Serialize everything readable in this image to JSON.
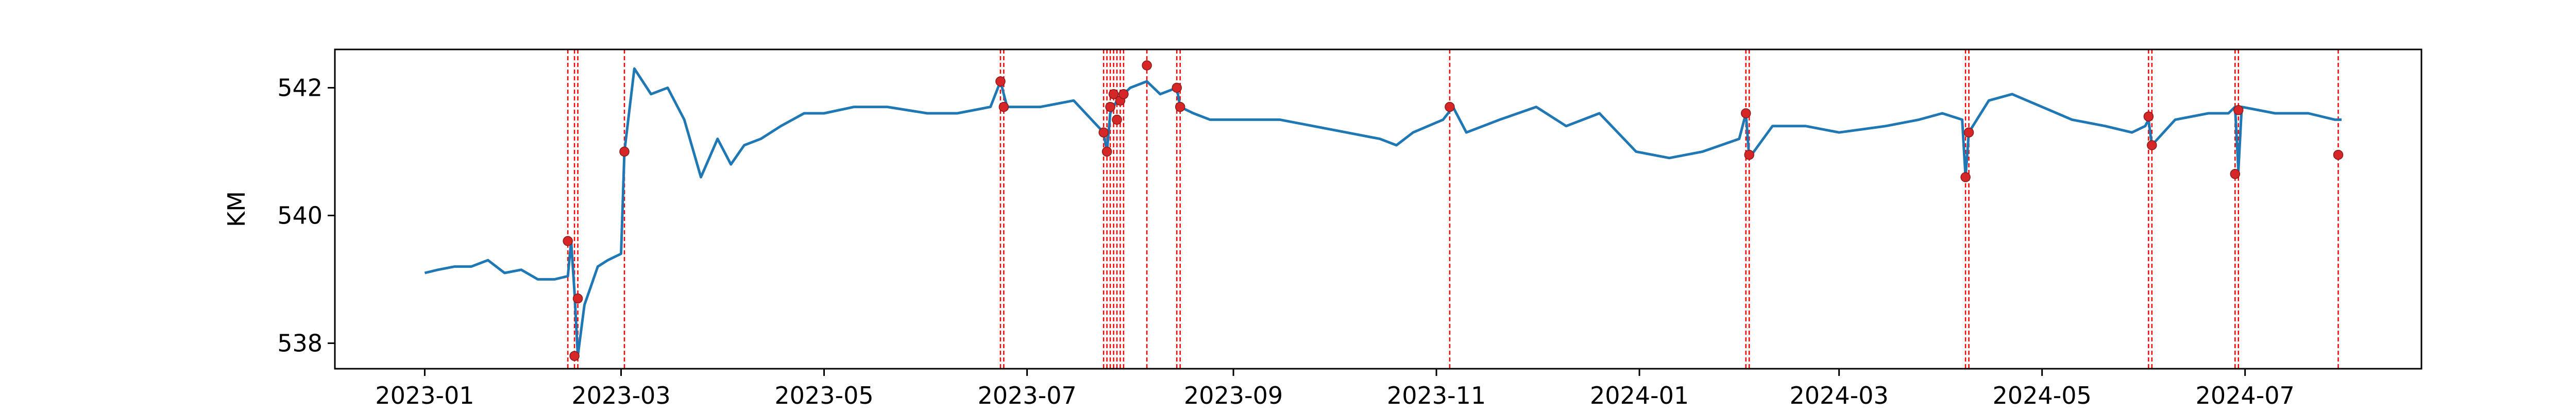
{
  "chart_data": {
    "type": "line",
    "title": "",
    "xlabel": "",
    "ylabel": "KM",
    "xlim": [
      "2022-12-05",
      "2024-08-23"
    ],
    "ylim": [
      537.6,
      542.6
    ],
    "yticks": [
      538,
      540,
      542
    ],
    "ytick_labels": [
      "538",
      "540",
      "542"
    ],
    "xticks": [
      "2023-01-01",
      "2023-03-01",
      "2023-05-01",
      "2023-07-01",
      "2023-09-01",
      "2023-11-01",
      "2024-01-01",
      "2024-03-01",
      "2024-05-01",
      "2024-07-01"
    ],
    "xtick_labels": [
      "2023-01",
      "2023-03",
      "2023-05",
      "2023-07",
      "2023-09",
      "2023-11",
      "2024-01",
      "2024-03",
      "2024-05",
      "2024-07"
    ],
    "grid": false,
    "legend": "none",
    "colors": {
      "series": "#1f77b4",
      "markers": "#d62728",
      "vlines": "#ff0000"
    },
    "series": [
      {
        "x": [
          "2023-01-01",
          "2023-01-05",
          "2023-01-10",
          "2023-01-15",
          "2023-01-20",
          "2023-01-25",
          "2023-01-30",
          "2023-02-04",
          "2023-02-09",
          "2023-02-13",
          "2023-02-14",
          "2023-02-15",
          "2023-02-16",
          "2023-02-18",
          "2023-02-20",
          "2023-02-22",
          "2023-02-25",
          "2023-03-01",
          "2023-03-02",
          "2023-03-05",
          "2023-03-10",
          "2023-03-15",
          "2023-03-20",
          "2023-03-25",
          "2023-03-30",
          "2023-04-03",
          "2023-04-07",
          "2023-04-12",
          "2023-04-18",
          "2023-04-25",
          "2023-05-01",
          "2023-05-10",
          "2023-05-20",
          "2023-06-01",
          "2023-06-10",
          "2023-06-20",
          "2023-06-23",
          "2023-06-25",
          "2023-07-05",
          "2023-07-15",
          "2023-07-24",
          "2023-07-25",
          "2023-07-26",
          "2023-07-28",
          "2023-07-30",
          "2023-08-01",
          "2023-08-06",
          "2023-08-10",
          "2023-08-15",
          "2023-08-16",
          "2023-08-20",
          "2023-08-25",
          "2023-09-05",
          "2023-09-15",
          "2023-09-25",
          "2023-10-05",
          "2023-10-15",
          "2023-10-20",
          "2023-10-25",
          "2023-11-03",
          "2023-11-06",
          "2023-11-10",
          "2023-11-20",
          "2023-12-01",
          "2023-12-10",
          "2023-12-20",
          "2023-12-31",
          "2024-01-10",
          "2024-01-20",
          "2024-01-31",
          "2024-02-02",
          "2024-02-03",
          "2024-02-10",
          "2024-02-20",
          "2024-03-01",
          "2024-03-15",
          "2024-03-25",
          "2024-04-01",
          "2024-04-07",
          "2024-04-08",
          "2024-04-09",
          "2024-04-15",
          "2024-04-22",
          "2024-05-01",
          "2024-05-10",
          "2024-05-20",
          "2024-05-28",
          "2024-06-01",
          "2024-06-02",
          "2024-06-03",
          "2024-06-10",
          "2024-06-20",
          "2024-06-26",
          "2024-06-28",
          "2024-06-29",
          "2024-06-30",
          "2024-07-10",
          "2024-07-20",
          "2024-07-28",
          "2024-07-30"
        ],
        "values": [
          539.1,
          539.15,
          539.2,
          539.2,
          539.3,
          539.1,
          539.15,
          539.0,
          539.0,
          539.05,
          539.6,
          538.8,
          537.8,
          538.6,
          538.9,
          539.2,
          539.3,
          539.4,
          541.0,
          542.3,
          541.9,
          542.0,
          541.5,
          540.6,
          541.2,
          540.8,
          541.1,
          541.2,
          541.4,
          541.6,
          541.6,
          541.7,
          541.7,
          541.6,
          541.6,
          541.7,
          542.1,
          541.7,
          541.7,
          541.8,
          541.3,
          541.0,
          541.6,
          541.8,
          541.9,
          542.0,
          542.1,
          541.9,
          542.0,
          541.7,
          541.6,
          541.5,
          541.5,
          541.5,
          541.4,
          541.3,
          541.2,
          541.1,
          541.3,
          541.5,
          541.7,
          541.3,
          541.5,
          541.7,
          541.4,
          541.6,
          541.0,
          540.9,
          541.0,
          541.2,
          541.6,
          540.9,
          541.4,
          541.4,
          541.3,
          541.4,
          541.5,
          541.6,
          541.5,
          540.6,
          541.3,
          541.8,
          541.9,
          541.7,
          541.5,
          541.4,
          541.3,
          541.4,
          541.5,
          541.1,
          541.5,
          541.6,
          541.6,
          541.7,
          540.7,
          541.7,
          541.6,
          541.6,
          541.5,
          541.5
        ]
      }
    ],
    "event_dates": [
      "2023-02-13",
      "2023-02-15",
      "2023-02-16",
      "2023-03-02",
      "2023-06-23",
      "2023-06-24",
      "2023-07-24",
      "2023-07-25",
      "2023-07-26",
      "2023-07-27",
      "2023-07-28",
      "2023-07-29",
      "2023-07-30",
      "2023-08-06",
      "2023-08-15",
      "2023-08-16",
      "2023-11-05",
      "2024-02-02",
      "2024-02-03",
      "2024-04-08",
      "2024-04-09",
      "2024-06-02",
      "2024-06-03",
      "2024-06-28",
      "2024-06-29",
      "2024-07-29"
    ],
    "event_values": [
      539.6,
      537.8,
      538.7,
      541.0,
      542.1,
      541.7,
      541.3,
      541.0,
      541.7,
      541.9,
      541.5,
      541.8,
      541.9,
      542.35,
      542.0,
      541.7,
      541.7,
      541.6,
      540.95,
      540.6,
      541.3,
      541.55,
      541.1,
      540.65,
      541.65,
      540.95
    ]
  }
}
